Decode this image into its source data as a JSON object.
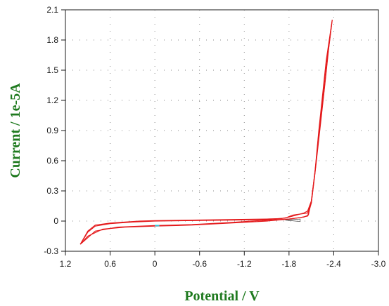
{
  "chart_data": {
    "type": "line",
    "title": "",
    "xlabel": "Potential / V",
    "ylabel": "Current / 1e-5A",
    "xlim": [
      1.2,
      -3.0
    ],
    "ylim": [
      -0.3,
      2.1
    ],
    "x_axis_reversed": true,
    "grid": "dotted",
    "xticks": [
      "1.2",
      "0.6",
      "0",
      "-0.6",
      "-1.2",
      "-1.8",
      "-2.4",
      "-3.0"
    ],
    "yticks": [
      "-0.3",
      "0",
      "0.3",
      "0.6",
      "0.9",
      "1.2",
      "1.5",
      "1.8",
      "2.1"
    ],
    "colors": {
      "curve": "#e41a1c",
      "inner": "#555555",
      "marker": "#2ec4d6",
      "axis": "#1a1a1a",
      "title": "#1f7a1f"
    },
    "series": [
      {
        "cycle": 1,
        "forward": [
          [
            1.0,
            -0.23
          ],
          [
            0.9,
            -0.1
          ],
          [
            0.8,
            -0.04
          ],
          [
            0.6,
            -0.02
          ],
          [
            0.4,
            -0.01
          ],
          [
            0.2,
            0.0
          ],
          [
            0.0,
            0.005
          ],
          [
            -0.5,
            0.01
          ],
          [
            -1.0,
            0.015
          ],
          [
            -1.5,
            0.02
          ],
          [
            -1.7,
            0.025
          ],
          [
            -1.8,
            0.04
          ],
          [
            -1.9,
            0.06
          ],
          [
            -2.0,
            0.08
          ],
          [
            -2.05,
            0.1
          ],
          [
            -2.1,
            0.2
          ],
          [
            -2.15,
            0.5
          ],
          [
            -2.2,
            0.9
          ],
          [
            -2.25,
            1.25
          ],
          [
            -2.3,
            1.6
          ],
          [
            -2.35,
            1.85
          ],
          [
            -2.38,
            2.0
          ]
        ],
        "reverse": [
          [
            -2.38,
            2.0
          ],
          [
            -2.33,
            1.7
          ],
          [
            -2.28,
            1.35
          ],
          [
            -2.22,
            0.95
          ],
          [
            -2.16,
            0.55
          ],
          [
            -2.1,
            0.2
          ],
          [
            -2.06,
            0.06
          ],
          [
            -2.0,
            0.04
          ],
          [
            -1.9,
            0.03
          ],
          [
            -1.8,
            0.02
          ],
          [
            -1.5,
            0.0
          ],
          [
            -1.0,
            -0.02
          ],
          [
            -0.5,
            -0.04
          ],
          [
            0.0,
            -0.05
          ],
          [
            0.4,
            -0.06
          ],
          [
            0.7,
            -0.08
          ],
          [
            0.9,
            -0.15
          ],
          [
            1.0,
            -0.23
          ]
        ]
      },
      {
        "cycle": 2,
        "forward": [
          [
            1.0,
            -0.23
          ],
          [
            0.9,
            -0.11
          ],
          [
            0.8,
            -0.05
          ],
          [
            0.6,
            -0.025
          ],
          [
            0.3,
            -0.01
          ],
          [
            0.0,
            0.0
          ],
          [
            -0.5,
            0.005
          ],
          [
            -1.0,
            0.01
          ],
          [
            -1.5,
            0.015
          ],
          [
            -1.75,
            0.03
          ],
          [
            -1.85,
            0.06
          ],
          [
            -1.95,
            0.07
          ],
          [
            -2.05,
            0.08
          ],
          [
            -2.1,
            0.18
          ],
          [
            -2.15,
            0.48
          ],
          [
            -2.2,
            0.88
          ],
          [
            -2.25,
            1.22
          ],
          [
            -2.3,
            1.58
          ],
          [
            -2.35,
            1.83
          ],
          [
            -2.37,
            1.95
          ]
        ],
        "reverse": [
          [
            -2.37,
            1.95
          ],
          [
            -2.32,
            1.65
          ],
          [
            -2.27,
            1.3
          ],
          [
            -2.21,
            0.9
          ],
          [
            -2.15,
            0.5
          ],
          [
            -2.1,
            0.18
          ],
          [
            -2.05,
            0.05
          ],
          [
            -1.95,
            0.035
          ],
          [
            -1.8,
            0.02
          ],
          [
            -1.4,
            0.005
          ],
          [
            -1.0,
            -0.015
          ],
          [
            -0.5,
            -0.035
          ],
          [
            0.0,
            -0.045
          ],
          [
            0.5,
            -0.06
          ],
          [
            0.8,
            -0.1
          ],
          [
            1.0,
            -0.23
          ]
        ]
      }
    ]
  }
}
